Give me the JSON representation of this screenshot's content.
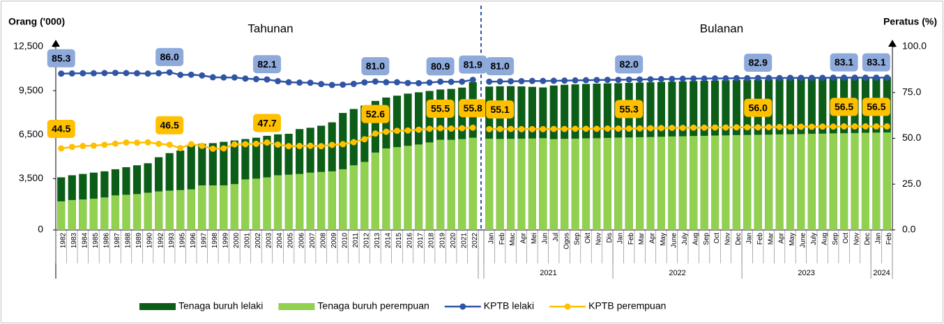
{
  "chart_data": [
    {
      "type": "bar_line",
      "title": "Tahunan",
      "ylabel": "Orang ('000)",
      "ylim": [
        0,
        12500
      ],
      "yticks": [
        0,
        {
          "value": 3500,
          "label": "3,500"
        },
        {
          "value": 6500,
          "label": "6,500"
        },
        {
          "value": 9500,
          "label": "9,500"
        },
        {
          "value": 12500,
          "label": "12,500"
        }
      ],
      "y2lim": [
        0,
        100
      ],
      "categories": [
        "1982",
        "1983",
        "1984",
        "1985",
        "1986",
        "1987",
        "1988",
        "1989",
        "1990",
        "1992",
        "1993",
        "1995",
        "1996",
        "1997",
        "1998",
        "1999",
        "2000",
        "2001",
        "2002",
        "2003",
        "2004",
        "2005",
        "2006",
        "2007",
        "2008",
        "2009",
        "2010",
        "2011",
        "2012",
        "2013",
        "2014",
        "2015",
        "2016",
        "2017",
        "2018",
        "2019",
        "2020",
        "2021",
        "2022"
      ],
      "series": [
        {
          "name": "Tenaga buruh lelaki",
          "color": "#0b5d17",
          "values": [
            3590,
            3730,
            3820,
            3910,
            4000,
            4140,
            4280,
            4410,
            4550,
            4960,
            5240,
            5420,
            5780,
            5880,
            5920,
            6010,
            6100,
            6200,
            6290,
            6420,
            6520,
            6560,
            6880,
            6970,
            7110,
            7340,
            7980,
            8250,
            8480,
            8800,
            9030,
            9160,
            9300,
            9390,
            9480,
            9580,
            9620,
            9710,
            10080
          ]
        },
        {
          "name": "Tenaga buruh perempuan",
          "color": "#92d050",
          "values": [
            1950,
            2040,
            2080,
            2130,
            2220,
            2360,
            2400,
            2450,
            2540,
            2630,
            2680,
            2720,
            2770,
            3040,
            3040,
            3040,
            3130,
            3450,
            3500,
            3590,
            3730,
            3770,
            3820,
            3910,
            3960,
            4000,
            4140,
            4410,
            4640,
            5280,
            5560,
            5650,
            5740,
            5830,
            5970,
            6150,
            6150,
            6200,
            6290
          ]
        },
        {
          "name": "KPTB lelaki",
          "color": "#2f55a4",
          "axis": "y2",
          "values": [
            85.3,
            85.4,
            85.5,
            85.5,
            85.6,
            85.7,
            85.6,
            85.5,
            85.3,
            85.5,
            86.0,
            84.6,
            84.7,
            84.3,
            83.3,
            83.2,
            83.2,
            82.6,
            82.3,
            82.1,
            81.2,
            80.6,
            80.4,
            80.3,
            79.6,
            79.1,
            79.3,
            79.7,
            80.5,
            81.0,
            80.6,
            80.6,
            80.2,
            80.1,
            80.4,
            80.9,
            80.8,
            80.9,
            81.9
          ],
          "value_labels": [
            "85.3",
            null,
            null,
            null,
            null,
            null,
            null,
            null,
            null,
            null,
            "86.0",
            null,
            null,
            null,
            null,
            null,
            null,
            null,
            null,
            "82.1",
            null,
            null,
            null,
            null,
            null,
            null,
            null,
            null,
            null,
            "81.0",
            null,
            null,
            null,
            null,
            null,
            "80.9",
            null,
            null,
            "81.9"
          ]
        },
        {
          "name": "KPTB perempuan",
          "color": "#ffc000",
          "axis": "y2",
          "values": [
            44.5,
            45.3,
            45.8,
            46.0,
            46.5,
            47.1,
            47.7,
            47.6,
            47.8,
            47.0,
            46.5,
            44.7,
            46.8,
            45.9,
            44.3,
            44.5,
            46.7,
            46.8,
            47.0,
            47.7,
            46.6,
            45.7,
            45.8,
            45.9,
            45.7,
            46.4,
            46.8,
            47.9,
            49.5,
            52.6,
            53.6,
            54.1,
            54.3,
            54.7,
            55.2,
            55.5,
            55.3,
            55.5,
            55.8
          ],
          "value_labels": [
            "44.5",
            null,
            null,
            null,
            null,
            null,
            null,
            null,
            null,
            null,
            "46.5",
            null,
            null,
            null,
            null,
            null,
            null,
            null,
            null,
            "47.7",
            null,
            null,
            null,
            null,
            null,
            null,
            null,
            null,
            null,
            "52.6",
            null,
            null,
            null,
            null,
            null,
            "55.5",
            null,
            null,
            "55.8"
          ]
        }
      ]
    },
    {
      "type": "bar_line",
      "title": "Bulanan",
      "y2label": "Peratus (%)",
      "ylim": [
        0,
        12500
      ],
      "y2lim": [
        0,
        100
      ],
      "y2ticks": [
        {
          "value": 0,
          "label": "0.0"
        },
        {
          "value": 25,
          "label": "25.0"
        },
        {
          "value": 50,
          "label": "50.0"
        },
        {
          "value": 75,
          "label": "75.0"
        },
        {
          "value": 100,
          "label": "100.0"
        }
      ],
      "groups": [
        {
          "label": "2021",
          "categories": [
            "Jan",
            "Feb",
            "Mac",
            "Apr",
            "Mei",
            "Jun",
            "Jul",
            "Ogos",
            "Sep",
            "Okt",
            "Nov",
            "Dis"
          ]
        },
        {
          "label": "2022",
          "categories": [
            "Jan",
            "Feb",
            "Mar",
            "Apr",
            "May",
            "June",
            "July",
            "Aug",
            "Sep",
            "Oct",
            "Nov",
            "Dec"
          ]
        },
        {
          "label": "2023",
          "categories": [
            "Jan",
            "Feb",
            "Mar",
            "Apr",
            "May",
            "June",
            "July",
            "Aug",
            "Sep",
            "Oct",
            "Nov",
            "Dec"
          ]
        },
        {
          "label": "2024",
          "categories": [
            "Jan",
            "Feb"
          ]
        }
      ],
      "series": [
        {
          "color": "#0b5d17",
          "values": [
            9780,
            9800,
            9810,
            9790,
            9760,
            9720,
            9850,
            9900,
            9930,
            9960,
            9980,
            10000,
            10010,
            10030,
            10050,
            10070,
            10090,
            10110,
            10130,
            10150,
            10170,
            10190,
            10210,
            10230,
            10240,
            10250,
            10270,
            10290,
            10300,
            10320,
            10340,
            10350,
            10370,
            10380,
            10400,
            10410,
            10420,
            10440
          ]
        },
        {
          "color": "#92d050",
          "values": [
            6230,
            6210,
            6220,
            6230,
            6240,
            6260,
            6200,
            6220,
            6230,
            6250,
            6260,
            6280,
            6300,
            6310,
            6330,
            6340,
            6360,
            6380,
            6390,
            6410,
            6420,
            6440,
            6450,
            6470,
            6480,
            6490,
            6500,
            6520,
            6530,
            6540,
            6560,
            6570,
            6590,
            6600,
            6610,
            6630,
            6640,
            6650
          ]
        },
        {
          "color": "#2f55a4",
          "axis": "y2",
          "values": [
            80.9,
            81.0,
            81.1,
            81.2,
            81.3,
            81.3,
            81.4,
            81.5,
            81.6,
            81.7,
            81.8,
            81.9,
            81.9,
            82.0,
            82.1,
            82.2,
            82.3,
            82.4,
            82.5,
            82.6,
            82.6,
            82.7,
            82.7,
            82.8,
            82.8,
            82.9,
            82.9,
            82.9,
            83.0,
            83.0,
            83.0,
            83.0,
            83.1,
            83.1,
            83.1,
            83.1,
            83.1,
            83.1
          ],
          "value_labels": [
            null,
            "81.0",
            null,
            null,
            null,
            null,
            null,
            null,
            null,
            null,
            null,
            null,
            null,
            "82.0",
            null,
            null,
            null,
            null,
            null,
            null,
            null,
            null,
            null,
            null,
            null,
            "82.9",
            null,
            null,
            null,
            null,
            null,
            null,
            null,
            "83.1",
            null,
            null,
            "83.1",
            null
          ]
        },
        {
          "color": "#ffc000",
          "axis": "y2",
          "values": [
            55.0,
            55.1,
            55.1,
            55.0,
            55.0,
            55.0,
            55.1,
            55.1,
            55.2,
            55.2,
            55.2,
            55.3,
            55.3,
            55.3,
            55.4,
            55.5,
            55.6,
            55.7,
            55.7,
            55.8,
            55.8,
            55.9,
            55.9,
            56.0,
            56.0,
            56.0,
            56.1,
            56.2,
            56.2,
            56.3,
            56.3,
            56.4,
            56.4,
            56.5,
            56.5,
            56.5,
            56.5,
            56.5
          ],
          "value_labels": [
            null,
            "55.1",
            null,
            null,
            null,
            null,
            null,
            null,
            null,
            null,
            null,
            null,
            null,
            "55.3",
            null,
            null,
            null,
            null,
            null,
            null,
            null,
            null,
            null,
            null,
            null,
            "56.0",
            null,
            null,
            null,
            null,
            null,
            null,
            null,
            "56.5",
            null,
            null,
            "56.5",
            null
          ]
        }
      ]
    }
  ]
}
